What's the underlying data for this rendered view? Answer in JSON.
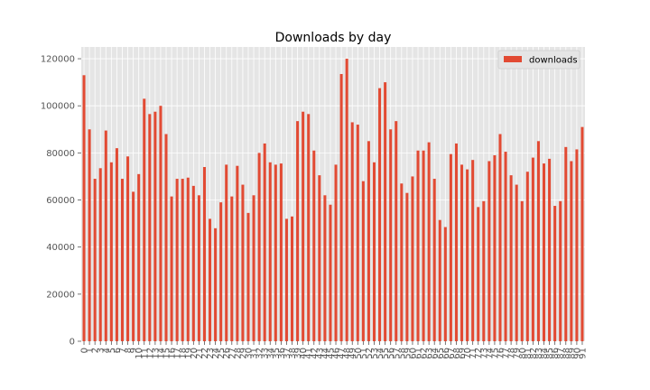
{
  "chart_data": {
    "type": "bar",
    "title": "Downloads by day",
    "xlabel": "",
    "ylabel": "",
    "legend": {
      "position": "top-right",
      "entries": [
        "downloads"
      ]
    },
    "grid": true,
    "ylim": [
      0,
      125000
    ],
    "yticks": [
      0,
      20000,
      40000,
      60000,
      80000,
      100000,
      120000
    ],
    "categories": [
      "0",
      "1",
      "2",
      "3",
      "4",
      "5",
      "6",
      "7",
      "8",
      "9",
      "10",
      "11",
      "12",
      "13",
      "14",
      "15",
      "16",
      "17",
      "18",
      "19",
      "20",
      "21",
      "22",
      "23",
      "24",
      "25",
      "26",
      "27",
      "28",
      "29",
      "30",
      "31",
      "32",
      "33",
      "34",
      "35",
      "36",
      "37",
      "38",
      "39",
      "40",
      "41",
      "42",
      "43",
      "44",
      "45",
      "46",
      "47",
      "48",
      "49",
      "50",
      "51",
      "52",
      "53",
      "54",
      "55",
      "56",
      "57",
      "58",
      "59",
      "60",
      "61",
      "62",
      "63",
      "64",
      "65",
      "66",
      "67",
      "68",
      "69",
      "70",
      "71",
      "72",
      "73",
      "74",
      "75",
      "76",
      "77",
      "78",
      "79",
      "80",
      "81",
      "82",
      "83",
      "84",
      "85",
      "86",
      "87",
      "88",
      "89",
      "90",
      "91"
    ],
    "series": [
      {
        "name": "downloads",
        "color": "#e24a33",
        "values": [
          113000,
          90000,
          69000,
          73500,
          89500,
          76000,
          82000,
          69000,
          78500,
          63500,
          71000,
          103000,
          96500,
          97500,
          100000,
          88000,
          61500,
          69000,
          69000,
          69500,
          66000,
          62000,
          74000,
          52000,
          48000,
          59000,
          75000,
          61500,
          74500,
          66500,
          54500,
          62000,
          80000,
          84000,
          76000,
          75000,
          75500,
          52000,
          53000,
          93500,
          97500,
          96500,
          81000,
          70500,
          62000,
          58000,
          75000,
          113500,
          120000,
          93000,
          92000,
          68000,
          85000,
          76000,
          107500,
          110000,
          90000,
          93500,
          67000,
          63000,
          70000,
          81000,
          81000,
          84500,
          69000,
          51500,
          48500,
          79500,
          84000,
          75000,
          73000,
          77000,
          57000,
          59500,
          76500,
          79000,
          88000,
          80500,
          70500,
          66500,
          59500,
          72000,
          78000,
          85000,
          75500,
          77500,
          57500,
          59500,
          82500,
          76500,
          81500,
          91000
        ]
      }
    ]
  }
}
